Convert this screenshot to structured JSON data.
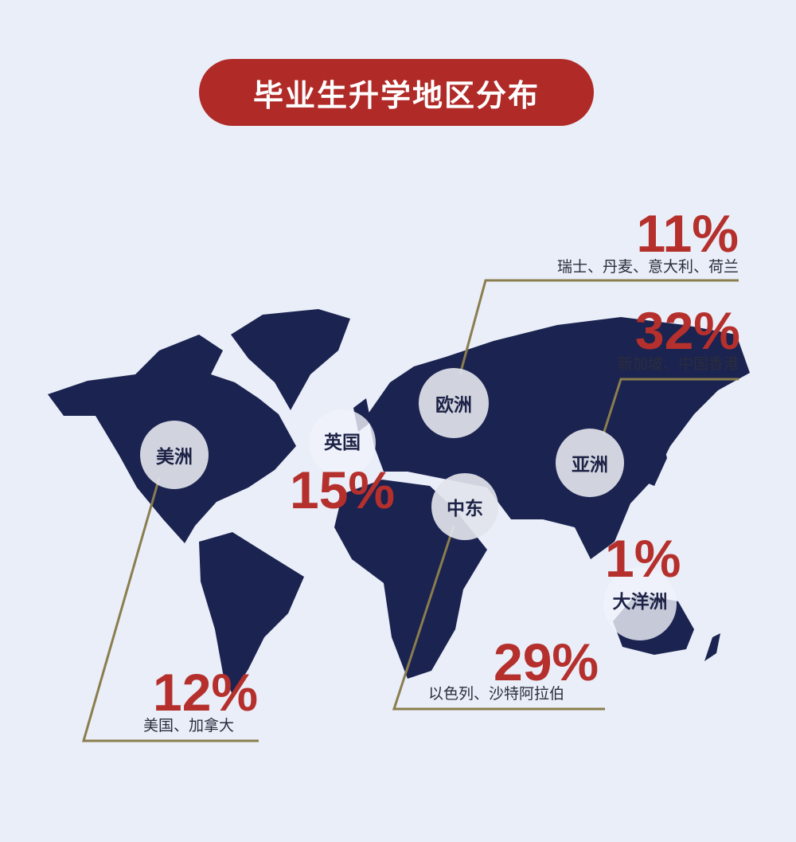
{
  "title": "毕业生升学地区分布",
  "colors": {
    "background": "#e9eef8",
    "title_bg": "#b02a27",
    "map": "#1b2350",
    "accent": "#b5302c",
    "leader_line": "#8a7d4e"
  },
  "regions": [
    {
      "name": "美洲",
      "percent": "12%",
      "detail": "美国、加拿大"
    },
    {
      "name": "英国",
      "percent": "15%",
      "detail": ""
    },
    {
      "name": "欧洲",
      "percent": "11%",
      "detail": "瑞士、丹麦、意大利、荷兰"
    },
    {
      "name": "中东",
      "percent": "29%",
      "detail": "以色列、沙特阿拉伯"
    },
    {
      "name": "亚洲",
      "percent": "32%",
      "detail": "新加坡、中国香港"
    },
    {
      "name": "大洋洲",
      "percent": "1%",
      "detail": ""
    }
  ]
}
